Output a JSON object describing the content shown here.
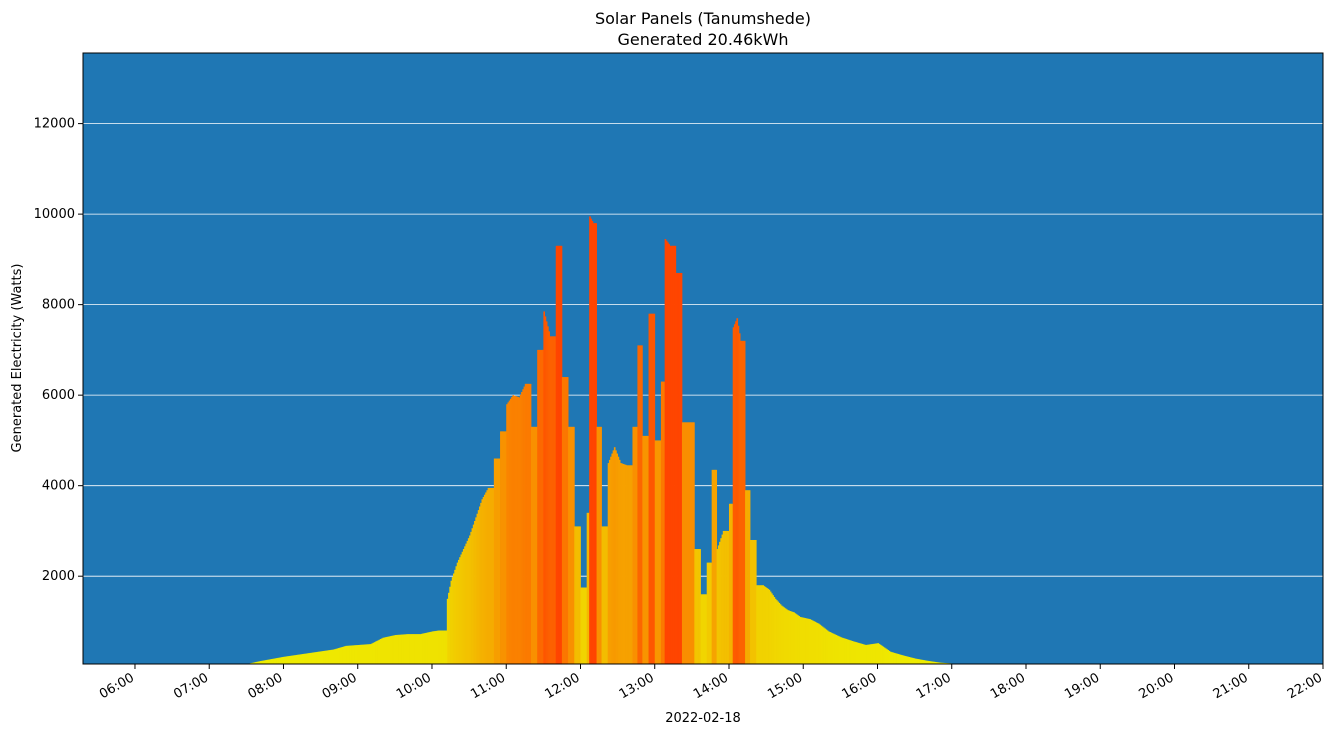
{
  "chart_data": {
    "type": "bar",
    "title": "Solar Panels (Tanumshede)",
    "subtitle": "Generated 20.46kWh",
    "xlabel": "2022-02-18",
    "ylabel": "Generated Electricity (Watts)",
    "x_range": [
      "05:18",
      "22:00"
    ],
    "ylim": [
      60,
      13560
    ],
    "x_ticks": [
      "06:00",
      "07:00",
      "08:00",
      "09:00",
      "10:00",
      "11:00",
      "12:00",
      "13:00",
      "14:00",
      "15:00",
      "16:00",
      "17:00",
      "18:00",
      "19:00",
      "20:00",
      "21:00",
      "22:00"
    ],
    "y_ticks": [
      2000,
      4000,
      6000,
      8000,
      10000,
      12000
    ],
    "grid": "horizontal",
    "colors": {
      "background": "#1f77b4",
      "grid": "#ffffff",
      "low": "#eeee00",
      "mid": "#f3bf00",
      "high": "#f98c00",
      "peak": "#ff4500"
    },
    "samples": [
      [
        "07:30",
        60
      ],
      [
        "07:40",
        120
      ],
      [
        "07:50",
        170
      ],
      [
        "08:00",
        220
      ],
      [
        "08:10",
        260
      ],
      [
        "08:20",
        300
      ],
      [
        "08:30",
        340
      ],
      [
        "08:40",
        380
      ],
      [
        "08:50",
        460
      ],
      [
        "09:00",
        480
      ],
      [
        "09:10",
        500
      ],
      [
        "09:20",
        640
      ],
      [
        "09:30",
        700
      ],
      [
        "09:40",
        720
      ],
      [
        "09:50",
        720
      ],
      [
        "10:00",
        780
      ],
      [
        "10:05",
        800
      ],
      [
        "10:12",
        1500
      ],
      [
        "10:15",
        1900
      ],
      [
        "10:20",
        2300
      ],
      [
        "10:25",
        2600
      ],
      [
        "10:30",
        2900
      ],
      [
        "10:35",
        3300
      ],
      [
        "10:40",
        3700
      ],
      [
        "10:45",
        3950
      ],
      [
        "10:50",
        4600
      ],
      [
        "10:55",
        5200
      ],
      [
        "11:00",
        5800
      ],
      [
        "11:05",
        6000
      ],
      [
        "11:10",
        5950
      ],
      [
        "11:15",
        6250
      ],
      [
        "11:20",
        5300
      ],
      [
        "11:25",
        7000
      ],
      [
        "11:30",
        7850
      ],
      [
        "11:35",
        7300
      ],
      [
        "11:40",
        9300
      ],
      [
        "11:45",
        6400
      ],
      [
        "11:50",
        5300
      ],
      [
        "11:55",
        3100
      ],
      [
        "12:00",
        1750
      ],
      [
        "12:05",
        3400
      ],
      [
        "12:07",
        9950
      ],
      [
        "12:10",
        9800
      ],
      [
        "12:13",
        5300
      ],
      [
        "12:17",
        3100
      ],
      [
        "12:22",
        4500
      ],
      [
        "12:27",
        4850
      ],
      [
        "12:32",
        4500
      ],
      [
        "12:37",
        4450
      ],
      [
        "12:42",
        5300
      ],
      [
        "12:46",
        7100
      ],
      [
        "12:50",
        5100
      ],
      [
        "12:55",
        7800
      ],
      [
        "13:00",
        5000
      ],
      [
        "13:05",
        6300
      ],
      [
        "13:08",
        9450
      ],
      [
        "13:12",
        9300
      ],
      [
        "13:17",
        8700
      ],
      [
        "13:22",
        5400
      ],
      [
        "13:27",
        5400
      ],
      [
        "13:32",
        2600
      ],
      [
        "13:37",
        1600
      ],
      [
        "13:42",
        2300
      ],
      [
        "13:46",
        4350
      ],
      [
        "13:50",
        2600
      ],
      [
        "13:55",
        3000
      ],
      [
        "14:00",
        3600
      ],
      [
        "14:03",
        7500
      ],
      [
        "14:06",
        7700
      ],
      [
        "14:09",
        7200
      ],
      [
        "14:13",
        3900
      ],
      [
        "14:17",
        2800
      ],
      [
        "14:22",
        1800
      ],
      [
        "14:27",
        1800
      ],
      [
        "14:32",
        1700
      ],
      [
        "14:37",
        1500
      ],
      [
        "14:42",
        1350
      ],
      [
        "14:47",
        1250
      ],
      [
        "14:52",
        1200
      ],
      [
        "14:57",
        1100
      ],
      [
        "15:05",
        1050
      ],
      [
        "15:12",
        950
      ],
      [
        "15:20",
        780
      ],
      [
        "15:30",
        650
      ],
      [
        "15:40",
        560
      ],
      [
        "15:50",
        480
      ],
      [
        "16:00",
        520
      ],
      [
        "16:10",
        330
      ],
      [
        "16:20",
        250
      ],
      [
        "16:30",
        180
      ],
      [
        "16:40",
        130
      ],
      [
        "16:50",
        90
      ],
      [
        "17:00",
        70
      ],
      [
        "17:20",
        60
      ]
    ]
  }
}
